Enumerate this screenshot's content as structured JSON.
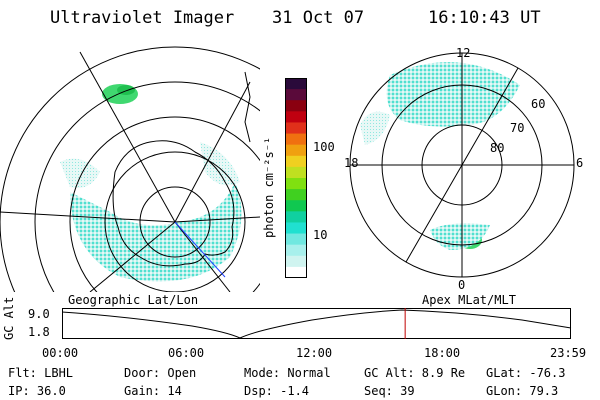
{
  "header": {
    "instrument": "Ultraviolet Imager",
    "date": "31 Oct 07",
    "time": "16:10:43 UT"
  },
  "colorbar": {
    "unit_label": "photon cm⁻²s⁻¹",
    "ticks": [
      "100",
      "10"
    ],
    "colors": [
      "#2a0a3a",
      "#5a0a3a",
      "#8a0010",
      "#c00010",
      "#e0301a",
      "#f07010",
      "#f0a010",
      "#f0d020",
      "#c0e020",
      "#80e010",
      "#40d020",
      "#10c850",
      "#10d0a0",
      "#20e0d0",
      "#70e8e0",
      "#a8f0ec",
      "#d0f4f0",
      "#ffffff"
    ]
  },
  "left_panel": {
    "caption": "Geographic Lat/Lon"
  },
  "right_panel": {
    "caption": "Apex  MLat/MLT",
    "mlt_labels": {
      "top": "12",
      "left": "18",
      "right": "6",
      "bottom": "0"
    },
    "lat_labels": [
      "60",
      "70",
      "80"
    ]
  },
  "timeline": {
    "y_label": "GC Alt",
    "y_ticks": [
      "9.0",
      "1.8"
    ],
    "x_ticks": [
      "00:00",
      "06:00",
      "12:00",
      "18:00",
      "23:59"
    ],
    "cursor_hour": 16.18,
    "cursor_color": "#c00000"
  },
  "footer": {
    "filter": "Flt: LBHL",
    "ip": "IP: 36.0",
    "door": "Door: Open",
    "gain": "Gain: 14",
    "mode": "Mode: Normal",
    "dsp": "Dsp:   -1.4",
    "gc_alt": "GC Alt: 8.9 Re",
    "seq": "Seq: 39",
    "glat": "GLat: -76.3",
    "glon": "GLon:  79.3"
  }
}
